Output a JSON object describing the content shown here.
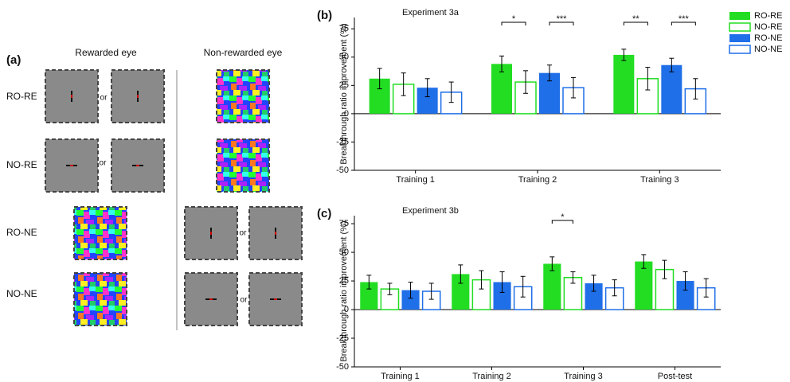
{
  "panel_a": {
    "label": "(a)",
    "columns": [
      "Rewarded eye",
      "Non-rewarded eye"
    ],
    "rows": [
      "RO-RE",
      "NO-RE",
      "RO-NE",
      "NO-NE"
    ],
    "connector": "or"
  },
  "chart_data": [
    {
      "type": "bar",
      "panel_label": "(b)",
      "title": "Experiment 3a",
      "ylabel": "Breakthrough ratio improvement (%)",
      "categories": [
        "Training 1",
        "Training 2",
        "Training 3"
      ],
      "series": [
        {
          "name": "RO-RE",
          "color": "#22dd22",
          "style": "filled",
          "values": [
            31,
            44,
            52
          ],
          "errors": [
            9,
            7,
            5
          ]
        },
        {
          "name": "NO-RE",
          "color": "#22dd22",
          "style": "outline",
          "values": [
            26,
            28,
            31
          ],
          "errors": [
            10,
            10,
            10
          ]
        },
        {
          "name": "RO-NE",
          "color": "#1f6fe8",
          "style": "filled",
          "values": [
            23,
            36,
            43
          ],
          "errors": [
            8,
            7,
            6
          ]
        },
        {
          "name": "NO-NE",
          "color": "#1f6fe8",
          "style": "outline",
          "values": [
            19,
            23,
            22
          ],
          "errors": [
            9,
            9,
            9
          ]
        }
      ],
      "annotations": [
        {
          "label": "*",
          "category": 1,
          "from": 0,
          "to": 1
        },
        {
          "label": "***",
          "category": 1,
          "from": 2,
          "to": 3
        },
        {
          "label": "**",
          "category": 2,
          "from": 0,
          "to": 1
        },
        {
          "label": "***",
          "category": 2,
          "from": 2,
          "to": 3
        }
      ],
      "ylim": [
        -50,
        85
      ],
      "yticks": [
        -50,
        -25,
        0,
        25,
        50,
        75
      ],
      "legend": "right"
    },
    {
      "type": "bar",
      "panel_label": "(c)",
      "title": "Experiment 3b",
      "ylabel": "Breakthrough ratio improvement (%)",
      "categories": [
        "Training 1",
        "Training 2",
        "Training 3",
        "Post-test"
      ],
      "series": [
        {
          "name": "RO-RE",
          "color": "#22dd22",
          "style": "filled",
          "values": [
            24,
            31,
            40,
            42
          ],
          "errors": [
            6,
            8,
            6,
            6
          ]
        },
        {
          "name": "NO-RE",
          "color": "#22dd22",
          "style": "outline",
          "values": [
            18,
            26,
            28,
            35
          ],
          "errors": [
            5,
            8,
            5,
            8
          ]
        },
        {
          "name": "RO-NE",
          "color": "#1f6fe8",
          "style": "filled",
          "values": [
            17,
            24,
            23,
            25
          ],
          "errors": [
            7,
            9,
            7,
            8
          ]
        },
        {
          "name": "NO-NE",
          "color": "#1f6fe8",
          "style": "outline",
          "values": [
            16,
            20,
            19,
            19
          ],
          "errors": [
            7,
            9,
            7,
            8
          ]
        }
      ],
      "annotations": [
        {
          "label": "*",
          "category": 2,
          "from": 0,
          "to": 1
        }
      ],
      "ylim": [
        -50,
        82
      ],
      "yticks": [
        -50,
        -25,
        0,
        25,
        50,
        75
      ]
    }
  ]
}
